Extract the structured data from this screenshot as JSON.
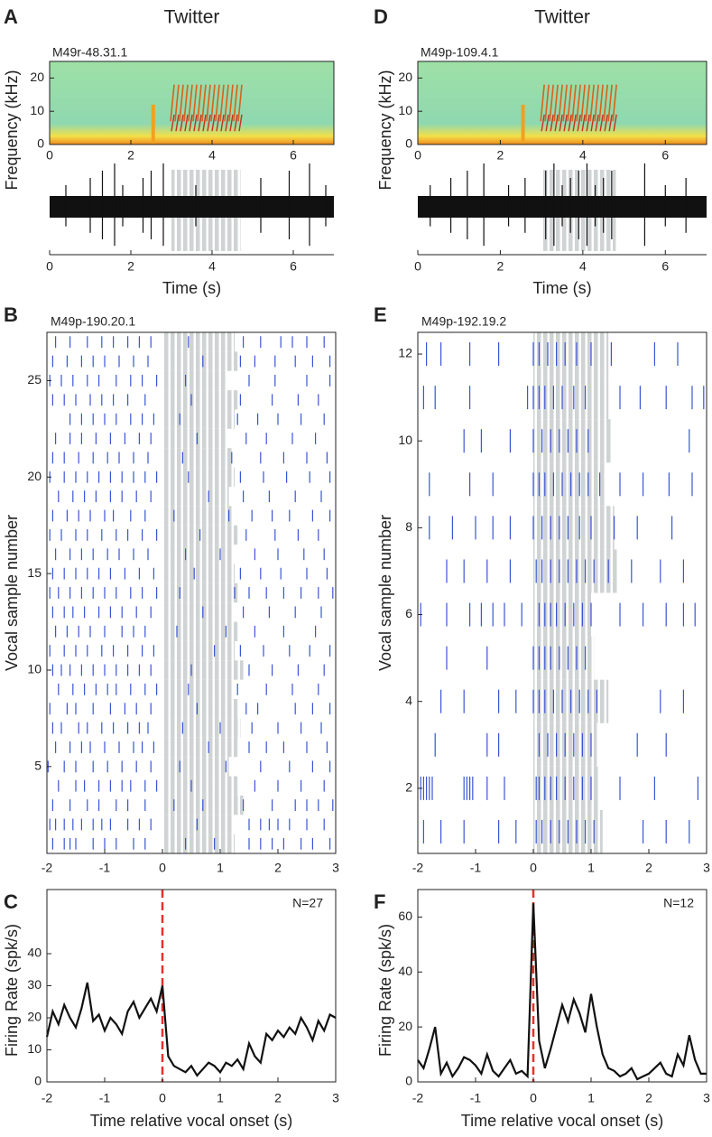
{
  "chart_data": [
    {
      "type": "spectrogram",
      "panel": "A",
      "title": "Twitter",
      "label": "M49r-48.31.1",
      "ylabel": "Frequency (kHz)",
      "xlim": [
        0,
        7
      ],
      "xticks": [
        0,
        2,
        4,
        6
      ],
      "ylim": [
        0,
        25
      ],
      "yticks": [
        0,
        10,
        20
      ],
      "vocal_interval": [
        3,
        4.7
      ]
    },
    {
      "type": "trace",
      "xlabel": "Time (s)",
      "xlim": [
        0,
        7
      ],
      "xticks": [
        0,
        2,
        4,
        6
      ],
      "vocal_interval": [
        3,
        4.7
      ],
      "spike_times": [
        0.4,
        1.0,
        1.3,
        1.6,
        1.8,
        2.3,
        2.5,
        2.8,
        3.6,
        5.2,
        5.9,
        6.4,
        6.8
      ]
    },
    {
      "type": "raster",
      "panel": "B",
      "label": "M49p-190.20.1",
      "ylabel": "Vocal sample number",
      "xlim": [
        -2,
        3
      ],
      "xticks": [
        -2,
        -1,
        0,
        1,
        2,
        3
      ],
      "ylim": [
        0.5,
        27.5
      ],
      "yticks": [
        5,
        10,
        15,
        20,
        25
      ],
      "color": "#3a55d6",
      "vocal_end": [
        1.25,
        1.2,
        1.4,
        1.3,
        1.15,
        1.3,
        1.35,
        1.3,
        1.2,
        1.4,
        1.25,
        1.3,
        1.2,
        1.3,
        1.25,
        1.2,
        1.3,
        1.2,
        1.15,
        1.25,
        1.2,
        1.1,
        1.25,
        1.3,
        1.1,
        1.3,
        1.25
      ],
      "trials": [
        [
          -1.9,
          -1.7,
          -1.6,
          -1.5,
          -1.2,
          -1.0,
          -0.8,
          -0.5,
          -0.3,
          0.4,
          0.9,
          1.5,
          1.7,
          1.9,
          2.1,
          2.4,
          2.6,
          2.9
        ],
        [
          -1.95,
          -1.85,
          -1.7,
          -1.55,
          -1.4,
          -1.2,
          -1.05,
          -0.9,
          -0.6,
          -0.4,
          -0.2,
          0.6,
          1.5,
          1.7,
          1.85,
          2.0,
          2.2,
          2.5,
          2.8
        ],
        [
          -1.9,
          -1.6,
          -1.3,
          -1.1,
          -0.8,
          -0.6,
          -0.3,
          0.2,
          0.7,
          1.4,
          1.9,
          2.3,
          2.5,
          2.7,
          2.95
        ],
        [
          -1.8,
          -1.5,
          -1.35,
          -1.1,
          -0.9,
          -0.7,
          -0.55,
          -0.3,
          -0.1,
          0.5,
          1.6,
          2.0,
          2.4,
          2.8
        ],
        [
          -1.98,
          -1.7,
          -1.5,
          -1.2,
          -0.95,
          -0.7,
          -0.45,
          -0.2,
          0.3,
          1.1,
          1.7,
          2.2,
          2.6,
          2.9
        ],
        [
          -1.85,
          -1.6,
          -1.4,
          -1.25,
          -1.0,
          -0.75,
          -0.5,
          -0.35,
          -0.15,
          0.8,
          1.5,
          1.8,
          2.1,
          2.5,
          2.85
        ],
        [
          -1.9,
          -1.75,
          -1.45,
          -1.3,
          -1.05,
          -0.85,
          -0.6,
          -0.4,
          -0.25,
          0.35,
          1.0,
          1.55,
          2.0,
          2.4,
          2.75
        ],
        [
          -1.95,
          -1.65,
          -1.5,
          -1.2,
          -0.9,
          -0.65,
          -0.45,
          -0.2,
          0.6,
          1.45,
          1.65,
          2.3,
          2.6,
          2.9
        ],
        [
          -1.8,
          -1.55,
          -1.35,
          -1.15,
          -0.95,
          -0.8,
          -0.55,
          -0.3,
          -0.1,
          0.45,
          1.3,
          1.8,
          2.25,
          2.7
        ],
        [
          -1.9,
          -1.75,
          -1.6,
          -1.4,
          -1.2,
          -1.0,
          -0.8,
          -0.6,
          -0.4,
          -0.2,
          0.5,
          1.5,
          1.9,
          2.35,
          2.8
        ],
        [
          -1.95,
          -1.7,
          -1.5,
          -1.3,
          -1.05,
          -0.85,
          -0.6,
          -0.35,
          -0.15,
          0.9,
          1.35,
          1.75,
          2.2,
          2.55,
          2.9
        ],
        [
          -1.85,
          -1.65,
          -1.45,
          -1.25,
          -1.0,
          -0.7,
          -0.5,
          -0.3,
          0.25,
          1.1,
          1.6,
          2.1,
          2.65
        ],
        [
          -1.9,
          -1.7,
          -1.55,
          -1.35,
          -1.1,
          -0.9,
          -0.7,
          -0.45,
          -0.2,
          0.7,
          1.4,
          1.85,
          2.3,
          2.75
        ],
        [
          -1.95,
          -1.8,
          -1.6,
          -1.4,
          -1.2,
          -1.0,
          -0.8,
          -0.55,
          -0.35,
          -0.1,
          0.3,
          1.25,
          1.5,
          1.8,
          2.1,
          2.4,
          2.7,
          2.95
        ],
        [
          -1.9,
          -1.7,
          -1.5,
          -1.3,
          -1.1,
          -0.9,
          -0.65,
          -0.4,
          -0.15,
          0.55,
          1.35,
          1.7,
          2.05,
          2.5,
          2.85
        ],
        [
          -1.85,
          -1.6,
          -1.4,
          -1.2,
          -0.95,
          -0.75,
          -0.5,
          -0.25,
          0.4,
          1.0,
          1.6,
          2.0,
          2.45,
          2.8
        ],
        [
          -1.95,
          -1.75,
          -1.5,
          -1.3,
          -1.05,
          -0.8,
          -0.6,
          -0.35,
          -0.1,
          0.65,
          1.45,
          1.95,
          2.35,
          2.7
        ],
        [
          -1.9,
          -1.65,
          -1.45,
          -1.25,
          -1.0,
          -0.85,
          -0.55,
          -0.3,
          0.2,
          1.15,
          1.55,
          1.9,
          2.2,
          2.6,
          2.9
        ],
        [
          -1.8,
          -1.55,
          -1.35,
          -1.15,
          -0.9,
          -0.7,
          -0.45,
          -0.2,
          0.8,
          1.4,
          1.85,
          2.3,
          2.75
        ],
        [
          -1.95,
          -1.7,
          -1.5,
          -1.3,
          -1.1,
          -0.9,
          -0.7,
          -0.5,
          -0.3,
          -0.1,
          0.45,
          1.35,
          1.75,
          2.15,
          2.55,
          2.9
        ],
        [
          -1.9,
          -1.7,
          -1.45,
          -1.2,
          -0.95,
          -0.75,
          -0.5,
          -0.25,
          0.35,
          1.2,
          1.7,
          2.1,
          2.5,
          2.85
        ],
        [
          -1.85,
          -1.6,
          -1.4,
          -1.15,
          -0.9,
          -0.65,
          -0.4,
          -0.2,
          0.6,
          1.45,
          1.8,
          2.25,
          2.65
        ],
        [
          -1.6,
          -1.4,
          -1.2,
          -1.0,
          -0.8,
          -0.55,
          -0.35,
          -0.15,
          0.3,
          1.3,
          1.65,
          2.0,
          2.4,
          2.8
        ],
        [
          -1.9,
          -1.7,
          -1.5,
          -1.25,
          -1.05,
          -0.85,
          -0.6,
          -0.3,
          0.5,
          1.35,
          1.9,
          2.35,
          2.7
        ],
        [
          -1.95,
          -1.75,
          -1.55,
          -1.3,
          -1.1,
          -0.8,
          -0.55,
          -0.35,
          -0.1,
          0.4,
          1.5,
          1.95,
          2.5,
          2.9
        ],
        [
          -1.9,
          -1.65,
          -1.4,
          -1.2,
          -1.0,
          -0.75,
          -0.5,
          -0.25,
          0.7,
          1.35,
          1.6,
          1.95,
          2.3,
          2.6,
          2.9
        ],
        [
          -1.85,
          -1.6,
          -1.3,
          -1.05,
          -0.85,
          -0.6,
          -0.4,
          -0.2,
          0.45,
          1.4,
          1.7,
          2.05,
          2.25,
          2.5,
          2.8
        ]
      ]
    },
    {
      "type": "line",
      "panel": "C",
      "annotation": "N=27",
      "ylabel": "Firing Rate (spk/s)",
      "xlabel": "Time relative vocal onset (s)",
      "color": "#111111",
      "onset": 0,
      "onset_color": "#e8312a",
      "xlim": [
        -2,
        3
      ],
      "xticks": [
        -2,
        -1,
        0,
        1,
        2,
        3
      ],
      "ylim": [
        0,
        60
      ],
      "yticks": [
        0,
        10,
        20,
        30,
        40
      ],
      "x": [
        -2,
        -1.9,
        -1.8,
        -1.7,
        -1.6,
        -1.5,
        -1.4,
        -1.3,
        -1.2,
        -1.1,
        -1,
        -0.9,
        -0.8,
        -0.7,
        -0.6,
        -0.5,
        -0.4,
        -0.3,
        -0.2,
        -0.1,
        0,
        0.1,
        0.2,
        0.3,
        0.4,
        0.5,
        0.6,
        0.7,
        0.8,
        0.9,
        1,
        1.1,
        1.2,
        1.3,
        1.4,
        1.5,
        1.6,
        1.7,
        1.8,
        1.9,
        2,
        2.1,
        2.2,
        2.3,
        2.4,
        2.5,
        2.6,
        2.7,
        2.8,
        2.9,
        3
      ],
      "values": [
        14,
        22,
        18,
        24,
        20,
        17,
        23,
        31,
        19,
        21,
        16,
        20,
        18,
        15,
        22,
        25,
        20,
        23,
        26,
        22,
        30,
        8,
        5,
        4,
        3,
        5,
        2,
        4,
        6,
        5,
        3,
        6,
        5,
        7,
        4,
        12,
        8,
        6,
        15,
        13,
        16,
        14,
        17,
        15,
        20,
        17,
        13,
        19,
        16,
        21,
        20
      ]
    },
    {
      "type": "spectrogram",
      "panel": "D",
      "title": "Twitter",
      "label": "M49p-109.4.1",
      "ylabel": "Frequency (kHz)",
      "xlim": [
        0,
        7
      ],
      "xticks": [
        0,
        2,
        4,
        6
      ],
      "ylim": [
        0,
        25
      ],
      "yticks": [
        0,
        10,
        20
      ],
      "vocal_interval": [
        3,
        4.8
      ]
    },
    {
      "type": "trace",
      "xlabel": "Time (s)",
      "xlim": [
        0,
        7
      ],
      "xticks": [
        0,
        2,
        4,
        6
      ],
      "vocal_interval": [
        3,
        4.8
      ],
      "spike_times": [
        0.3,
        0.8,
        1.2,
        1.6,
        2.2,
        2.6,
        3.1,
        3.3,
        3.5,
        3.7,
        3.9,
        4.1,
        4.3,
        4.5,
        4.7,
        5.5,
        6.0,
        6.5
      ]
    },
    {
      "type": "raster",
      "panel": "E",
      "label": "M49p-192.19.2",
      "ylabel": "Vocal sample number",
      "xlim": [
        -2,
        3
      ],
      "xticks": [
        -2,
        -1,
        0,
        1,
        2,
        3
      ],
      "ylim": [
        0.5,
        12.5
      ],
      "yticks": [
        2,
        4,
        6,
        8,
        10,
        12
      ],
      "color": "#3a55d6",
      "vocal_end": [
        1.2,
        1.15,
        1.1,
        1.3,
        1.05,
        1.0,
        1.45,
        1.4,
        1.25,
        1.35,
        1.3,
        1.3
      ],
      "trials": [
        [
          -1.9,
          -1.6,
          -1.2,
          -0.6,
          -0.3,
          0.05,
          0.15,
          0.3,
          0.45,
          0.6,
          0.75,
          0.9,
          1.05,
          1.9,
          2.3,
          2.7
        ],
        [
          -1.95,
          -1.9,
          -1.85,
          -1.8,
          -1.75,
          -1.2,
          -1.15,
          -1.1,
          -1.05,
          -0.8,
          -0.5,
          0.05,
          0.1,
          0.2,
          0.3,
          0.4,
          0.55,
          0.7,
          0.85,
          1.0,
          1.5,
          2.1,
          2.85
        ],
        [
          -1.7,
          -0.8,
          -0.6,
          0.1,
          0.25,
          0.4,
          0.55,
          0.7,
          0.85,
          1.0,
          1.8,
          2.3
        ],
        [
          -1.6,
          -1.2,
          -0.6,
          -0.3,
          0.0,
          0.1,
          0.2,
          0.35,
          0.5,
          0.65,
          0.8,
          0.95,
          1.1,
          2.2,
          2.6
        ],
        [
          -1.5,
          -0.8,
          0.0,
          0.1,
          0.2,
          0.3,
          0.45,
          0.6,
          0.75,
          0.9
        ],
        [
          -1.95,
          -1.5,
          -1.1,
          -0.9,
          -0.7,
          -0.5,
          -0.2,
          0.1,
          0.2,
          0.3,
          0.4,
          0.55,
          0.7,
          0.85,
          1.0,
          1.5,
          1.9,
          2.3,
          2.6,
          2.8
        ],
        [
          -1.5,
          -1.2,
          -0.8,
          -0.4,
          0.05,
          0.15,
          0.3,
          0.45,
          0.6,
          0.75,
          0.9,
          1.05,
          1.3,
          1.7,
          2.2,
          2.6
        ],
        [
          -1.8,
          -1.4,
          -1.0,
          -0.7,
          -0.4,
          0.0,
          0.15,
          0.3,
          0.45,
          0.6,
          0.8,
          1.0,
          1.4,
          1.8,
          2.4
        ],
        [
          -1.8,
          -1.1,
          -0.7,
          0.0,
          0.1,
          0.2,
          0.35,
          0.5,
          0.65,
          0.8,
          0.95,
          1.15,
          1.5,
          1.9,
          2.35,
          2.75
        ],
        [
          -1.2,
          -0.9,
          -0.4,
          0.0,
          0.15,
          0.3,
          0.45,
          0.6,
          0.75,
          0.95,
          2.7
        ],
        [
          -1.9,
          -1.7,
          -1.1,
          -0.1,
          0.0,
          0.1,
          0.2,
          0.35,
          0.5,
          0.7,
          0.9,
          1.5,
          1.85,
          2.3,
          2.75,
          2.95
        ],
        [
          -1.85,
          -1.6,
          -1.1,
          -0.6,
          0.0,
          0.1,
          0.25,
          0.4,
          0.55,
          0.75,
          1.0,
          1.35,
          2.1,
          2.5
        ]
      ]
    },
    {
      "type": "line",
      "panel": "F",
      "annotation": "N=12",
      "ylabel": "Firing Rate (spk/s)",
      "xlabel": "Time relative vocal onset (s)",
      "color": "#111111",
      "onset": 0,
      "onset_color": "#e8312a",
      "xlim": [
        -2,
        3
      ],
      "xticks": [
        -2,
        -1,
        0,
        1,
        2,
        3
      ],
      "ylim": [
        0,
        70
      ],
      "yticks": [
        0,
        20,
        40,
        60
      ],
      "x": [
        -2,
        -1.9,
        -1.8,
        -1.7,
        -1.6,
        -1.5,
        -1.4,
        -1.3,
        -1.2,
        -1.1,
        -1,
        -0.9,
        -0.8,
        -0.7,
        -0.6,
        -0.5,
        -0.4,
        -0.3,
        -0.2,
        -0.1,
        0,
        0.1,
        0.2,
        0.3,
        0.4,
        0.5,
        0.6,
        0.7,
        0.8,
        0.9,
        1,
        1.1,
        1.2,
        1.3,
        1.4,
        1.5,
        1.6,
        1.7,
        1.8,
        1.9,
        2,
        2.1,
        2.2,
        2.3,
        2.4,
        2.5,
        2.6,
        2.7,
        2.8,
        2.9,
        3
      ],
      "values": [
        8,
        5,
        12,
        20,
        3,
        7,
        2,
        5,
        9,
        8,
        6,
        3,
        10,
        4,
        2,
        5,
        8,
        3,
        4,
        2,
        65,
        15,
        5,
        12,
        20,
        28,
        22,
        30,
        25,
        18,
        32,
        20,
        10,
        5,
        4,
        2,
        3,
        5,
        1,
        2,
        3,
        5,
        7,
        3,
        2,
        10,
        6,
        17,
        8,
        3,
        3
      ]
    }
  ]
}
